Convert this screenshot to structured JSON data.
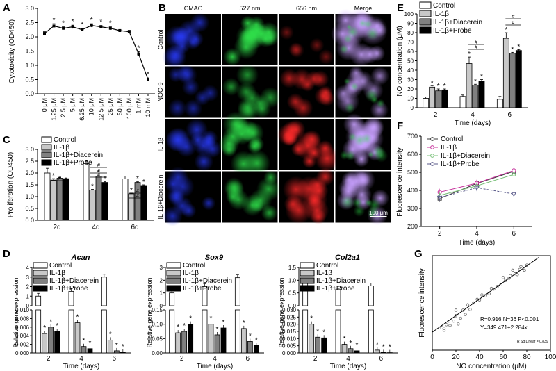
{
  "figure": {
    "panels": {
      "A": "A",
      "B": "B",
      "C": "C",
      "D": "D",
      "E": "E",
      "F": "F",
      "G": "G"
    },
    "colors": {
      "control": "#ffffff",
      "il1b": "#c8c8c8",
      "il1b_diacerein": "#808080",
      "il1b_probe": "#000000",
      "line_control": "#3a3a3a",
      "line_il1b": "#c7349d",
      "line_diacerein": "#7ac17a",
      "line_probe": "#5a5a8a"
    },
    "legend_labels": {
      "control": "Control",
      "il1b": "IL-1β",
      "il1b_diacerein": "IL-1β+Diacerein",
      "il1b_probe": "IL-1β+Probe"
    },
    "star": "*",
    "hash": "#"
  },
  "chart_data": [
    {
      "id": "A",
      "type": "line",
      "ylabel": "Cytotoxicity (OD450)",
      "categories": [
        "0 μM",
        "1.25 μM",
        "2.5 μM",
        "5 μM",
        "6.25 μM",
        "10 μM",
        "12.5 μM",
        "25 μM",
        "50 μM",
        "100 μM",
        "1 mM",
        "10 mM"
      ],
      "values": [
        2.12,
        2.38,
        2.3,
        2.35,
        2.25,
        2.4,
        2.35,
        2.3,
        2.22,
        2.18,
        1.4,
        0.5
      ],
      "errors": [
        0.06,
        0.08,
        0.05,
        0.06,
        0.05,
        0.06,
        0.05,
        0.05,
        0.04,
        0.05,
        0.08,
        0.06
      ],
      "stars": [
        false,
        true,
        true,
        true,
        true,
        true,
        true,
        true,
        false,
        false,
        true,
        true
      ],
      "ylim": [
        0,
        3.0
      ],
      "yticks": [
        "0.0",
        "0.5",
        "1.0",
        "1.5",
        "2.0",
        "2.5",
        "3.0"
      ]
    },
    {
      "id": "B",
      "type": "table",
      "column_headers": [
        "CMAC",
        "527 nm",
        "656 nm",
        "Merge"
      ],
      "row_labels": [
        "Control",
        "NOC-9",
        "IL-1β",
        "IL-1β+Diacerein"
      ],
      "scale_bar": "100 μm"
    },
    {
      "id": "C",
      "type": "bar",
      "ylabel": "Proliferation (OD450)",
      "categories": [
        "2d",
        "4d",
        "6d"
      ],
      "series": [
        {
          "name": "Control",
          "values": [
            2.0,
            2.4,
            1.75
          ],
          "errors": [
            0.2,
            0.12,
            0.12
          ]
        },
        {
          "name": "IL-1β",
          "values": [
            1.7,
            1.28,
            1.12
          ],
          "errors": [
            0.06,
            0.03,
            0.03
          ]
        },
        {
          "name": "IL-1β+Diacerein",
          "values": [
            1.78,
            1.87,
            1.6
          ],
          "errors": [
            0.04,
            0.04,
            0.04
          ]
        },
        {
          "name": "IL-1β+Probe",
          "values": [
            1.76,
            1.6,
            1.47
          ],
          "errors": [
            0.03,
            0.04,
            0.03
          ]
        }
      ],
      "stars": [
        [
          false,
          true,
          false,
          false
        ],
        [
          false,
          true,
          true,
          true
        ],
        [
          false,
          true,
          true,
          true
        ]
      ],
      "ylim": [
        0,
        3.0
      ],
      "yticks": [
        "0.0",
        "0.5",
        "1.0",
        "1.5",
        "2.0",
        "2.5",
        "3.0"
      ]
    },
    {
      "id": "D-Acan",
      "type": "bar",
      "title": "Acan",
      "xlabel": "Time (days)",
      "ylabel": "Relative gene expression",
      "categories": [
        "2",
        "4",
        "6"
      ],
      "series": [
        {
          "name": "Control",
          "values": [
            1.0,
            1.5,
            3.0
          ]
        },
        {
          "name": "IL-1β",
          "values": [
            0.0045,
            0.007,
            0.003
          ]
        },
        {
          "name": "IL-1β+Diacerein",
          "values": [
            0.006,
            0.0015,
            0.0005
          ]
        },
        {
          "name": "IL-1β+Probe",
          "values": [
            0.005,
            0.001,
            0.0002
          ]
        }
      ],
      "upper_ticks": [
        "0",
        "1",
        "2",
        "3",
        "4"
      ],
      "lower_ticks": [
        "0.000",
        "0.002",
        "0.004",
        "0.006",
        "0.008",
        "0.010"
      ],
      "upper_range": [
        0,
        4
      ],
      "lower_range": [
        0,
        0.01
      ]
    },
    {
      "id": "D-Sox9",
      "type": "bar",
      "title": "Sox9",
      "xlabel": "Time (days)",
      "ylabel": "Relative gene expression",
      "categories": [
        "2",
        "4",
        "6"
      ],
      "series": [
        {
          "name": "Control",
          "values": [
            1.0,
            1.5,
            2.2
          ]
        },
        {
          "name": "IL-1β",
          "values": [
            0.07,
            0.1,
            0.085
          ]
        },
        {
          "name": "IL-1β+Diacerein",
          "values": [
            0.075,
            0.063,
            0.04
          ]
        },
        {
          "name": "IL-1β+Probe",
          "values": [
            0.1,
            0.087,
            0.026
          ]
        }
      ],
      "upper_ticks": [
        "0",
        "1",
        "2",
        "3"
      ],
      "lower_ticks": [
        "0.00",
        "0.05",
        "0.10",
        "0.15"
      ],
      "upper_range": [
        0,
        3
      ],
      "lower_range": [
        0,
        0.15
      ]
    },
    {
      "id": "D-Col2a1",
      "type": "bar",
      "title": "Col2a1",
      "xlabel": "Time (days)",
      "ylabel": "Relative gene expression",
      "categories": [
        "2",
        "4",
        "6"
      ],
      "series": [
        {
          "name": "Control",
          "values": [
            0.95,
            0.65,
            0.78
          ]
        },
        {
          "name": "IL-1β",
          "values": [
            0.02,
            0.006,
            0.002
          ]
        },
        {
          "name": "IL-1β+Diacerein",
          "values": [
            0.011,
            0.003,
            0.0003
          ]
        },
        {
          "name": "IL-1β+Probe",
          "values": [
            0.0105,
            0.0015,
            0.0002
          ]
        }
      ],
      "upper_ticks": [
        "0.0",
        "0.5",
        "1.0",
        "1.5"
      ],
      "lower_ticks": [
        "0.000",
        "0.005",
        "0.010",
        "0.015",
        "0.020",
        "0.025",
        "0.030"
      ],
      "upper_range": [
        0,
        1.5
      ],
      "lower_range": [
        0,
        0.03
      ]
    },
    {
      "id": "E",
      "type": "bar",
      "xlabel": "Time (days)",
      "ylabel": "NO concentration (μM)",
      "categories": [
        "2",
        "4",
        "6"
      ],
      "series": [
        {
          "name": "Control",
          "values": [
            10,
            12,
            9
          ],
          "errors": [
            1.5,
            1.5,
            3
          ]
        },
        {
          "name": "IL-1β",
          "values": [
            22,
            47,
            74
          ],
          "errors": [
            1.5,
            7,
            6
          ]
        },
        {
          "name": "IL-1β+Diacerein",
          "values": [
            18,
            24,
            58
          ],
          "errors": [
            2,
            1,
            1
          ]
        },
        {
          "name": "IL-1β+Probe",
          "values": [
            19,
            28,
            61
          ],
          "errors": [
            1,
            2,
            1
          ]
        }
      ],
      "stars": [
        [
          false,
          true,
          true,
          true
        ],
        [
          false,
          true,
          true,
          true
        ],
        [
          false,
          true,
          true,
          true
        ]
      ],
      "ylim": [
        0,
        100
      ],
      "yticks": [
        "0",
        "10",
        "20",
        "30",
        "40",
        "50",
        "60",
        "70",
        "80",
        "90",
        "100"
      ]
    },
    {
      "id": "F",
      "type": "line",
      "xlabel": "Time (days)",
      "ylabel": "Fluorescence intensity",
      "x": [
        2,
        4,
        6
      ],
      "series": [
        {
          "name": "Control",
          "values": [
            355,
            438,
            505
          ]
        },
        {
          "name": "IL-1β",
          "values": [
            390,
            440,
            510
          ]
        },
        {
          "name": "IL-1β+Diacerein",
          "values": [
            372,
            425,
            488
          ]
        },
        {
          "name": "IL-1β+Probe",
          "values": [
            360,
            415,
            380
          ]
        }
      ],
      "xlim": [
        1,
        7
      ],
      "ylim": [
        200,
        700
      ],
      "xticks": [
        "2",
        "4",
        "6"
      ],
      "yticks": [
        "200",
        "300",
        "400",
        "500",
        "600",
        "700"
      ]
    },
    {
      "id": "G",
      "type": "scatter",
      "xlabel": "NO concentration (μM)",
      "ylabel": "Fluorescence intensity",
      "xlim": [
        0,
        100
      ],
      "xticks": [
        "0",
        "20",
        "40",
        "60",
        "80",
        "100"
      ],
      "annotation_line1": "R=0.916   N=36   P<0.001",
      "annotation_line2": "Y=349.471+2.284x",
      "rsq_label": "R Sq Linear = 0.839",
      "points": [
        [
          8,
          362
        ],
        [
          10,
          360
        ],
        [
          12,
          370
        ],
        [
          15,
          368
        ],
        [
          18,
          380
        ],
        [
          20,
          395
        ],
        [
          22,
          372
        ],
        [
          24,
          388
        ],
        [
          26,
          410
        ],
        [
          28,
          398
        ],
        [
          30,
          425
        ],
        [
          32,
          412
        ],
        [
          35,
          430
        ],
        [
          38,
          440
        ],
        [
          40,
          438
        ],
        [
          42,
          452
        ],
        [
          45,
          450
        ],
        [
          48,
          455
        ],
        [
          50,
          470
        ],
        [
          52,
          468
        ],
        [
          55,
          475
        ],
        [
          58,
          480
        ],
        [
          60,
          500
        ],
        [
          62,
          492
        ],
        [
          65,
          498
        ],
        [
          66,
          505
        ],
        [
          68,
          520
        ],
        [
          70,
          510
        ],
        [
          72,
          508
        ],
        [
          74,
          522
        ],
        [
          75,
          530
        ],
        [
          78,
          520
        ],
        [
          80,
          534
        ],
        [
          10,
          355
        ],
        [
          14,
          380
        ],
        [
          20,
          410
        ]
      ],
      "fit": {
        "intercept": 349.471,
        "slope": 2.284
      }
    }
  ]
}
